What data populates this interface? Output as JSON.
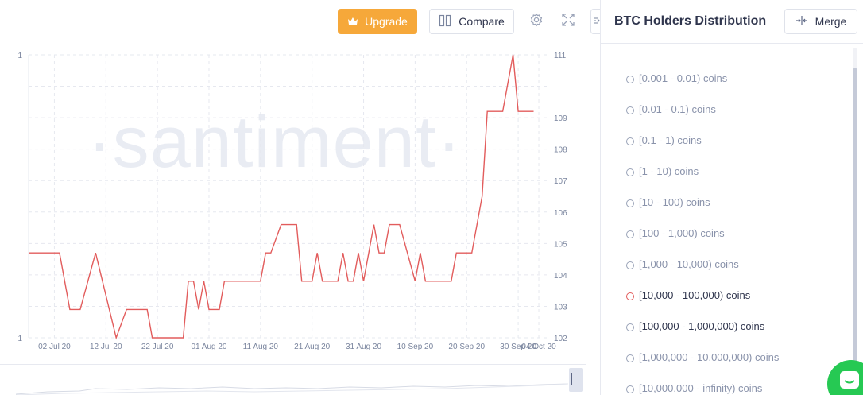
{
  "toolbar": {
    "upgrade_label": "Upgrade",
    "compare_label": "Compare",
    "settings_icon": "gear-icon",
    "fullscreen_icon": "expand-icon",
    "upgrade_color": "#f6a83a"
  },
  "watermark": "·santiment·",
  "sidebar": {
    "title": "BTC Holders Distribution",
    "merge_label": "Merge",
    "items": [
      {
        "label": "[0.001 - 0.01) coins",
        "active": false
      },
      {
        "label": "[0.01 - 0.1) coins",
        "active": false
      },
      {
        "label": "[0.1 - 1) coins",
        "active": false
      },
      {
        "label": "[1 - 10) coins",
        "active": false
      },
      {
        "label": "[10 - 100) coins",
        "active": false
      },
      {
        "label": "[100 - 1,000) coins",
        "active": false
      },
      {
        "label": "[1,000 - 10,000) coins",
        "active": false
      },
      {
        "label": "[10,000 - 100,000) coins",
        "active": true,
        "color": "#e25c5c"
      },
      {
        "label": "[100,000 - 1,000,000) coins",
        "active": true
      },
      {
        "label": "[1,000,000 - 10,000,000) coins",
        "active": false
      },
      {
        "label": "[10,000,000 - infinity) coins",
        "active": false
      }
    ]
  },
  "chart_data": {
    "type": "line",
    "x_tick_labels": [
      "02 Jul 20",
      "12 Jul 20",
      "22 Jul 20",
      "01 Aug 20",
      "11 Aug 20",
      "21 Aug 20",
      "31 Aug 20",
      "10 Sep 20",
      "20 Sep 20",
      "30 Sep 20",
      "04 Oct 20"
    ],
    "left_axis_labels": [
      "1",
      "1"
    ],
    "right_axis_labels": [
      "111",
      "109",
      "108",
      "107",
      "106",
      "105",
      "104",
      "103",
      "102"
    ],
    "ylim_right": [
      102,
      111
    ],
    "grid": true,
    "series": [
      {
        "color": "#e25c5c",
        "axis": "right",
        "points": [
          [
            "2020-06-27",
            104.7
          ],
          [
            "2020-07-03",
            104.7
          ],
          [
            "2020-07-05",
            102.9
          ],
          [
            "2020-07-07",
            102.9
          ],
          [
            "2020-07-10",
            104.7
          ],
          [
            "2020-07-14",
            102.0
          ],
          [
            "2020-07-16",
            102.9
          ],
          [
            "2020-07-20",
            102.9
          ],
          [
            "2020-07-21",
            102.0
          ],
          [
            "2020-07-24",
            102.0
          ],
          [
            "2020-07-27",
            102.0
          ],
          [
            "2020-07-28",
            103.8
          ],
          [
            "2020-07-29",
            103.8
          ],
          [
            "2020-07-30",
            102.9
          ],
          [
            "2020-07-31",
            103.8
          ],
          [
            "2020-08-01",
            102.9
          ],
          [
            "2020-08-03",
            102.9
          ],
          [
            "2020-08-04",
            103.8
          ],
          [
            "2020-08-11",
            103.8
          ],
          [
            "2020-08-12",
            104.7
          ],
          [
            "2020-08-13",
            104.7
          ],
          [
            "2020-08-15",
            105.6
          ],
          [
            "2020-08-18",
            105.6
          ],
          [
            "2020-08-19",
            103.8
          ],
          [
            "2020-08-21",
            103.8
          ],
          [
            "2020-08-22",
            104.7
          ],
          [
            "2020-08-23",
            103.8
          ],
          [
            "2020-08-26",
            103.8
          ],
          [
            "2020-08-27",
            104.7
          ],
          [
            "2020-08-28",
            103.8
          ],
          [
            "2020-08-29",
            103.8
          ],
          [
            "2020-08-30",
            104.7
          ],
          [
            "2020-08-31",
            103.8
          ],
          [
            "2020-09-02",
            105.6
          ],
          [
            "2020-09-03",
            104.7
          ],
          [
            "2020-09-04",
            104.7
          ],
          [
            "2020-09-05",
            105.6
          ],
          [
            "2020-09-07",
            105.6
          ],
          [
            "2020-09-10",
            103.8
          ],
          [
            "2020-09-11",
            104.7
          ],
          [
            "2020-09-12",
            103.8
          ],
          [
            "2020-09-17",
            103.8
          ],
          [
            "2020-09-18",
            104.7
          ],
          [
            "2020-09-21",
            104.7
          ],
          [
            "2020-09-23",
            106.5
          ],
          [
            "2020-09-24",
            109.2
          ],
          [
            "2020-09-27",
            109.2
          ],
          [
            "2020-09-29",
            111.0
          ],
          [
            "2020-09-30",
            109.2
          ],
          [
            "2020-10-03",
            109.2
          ]
        ]
      }
    ]
  }
}
